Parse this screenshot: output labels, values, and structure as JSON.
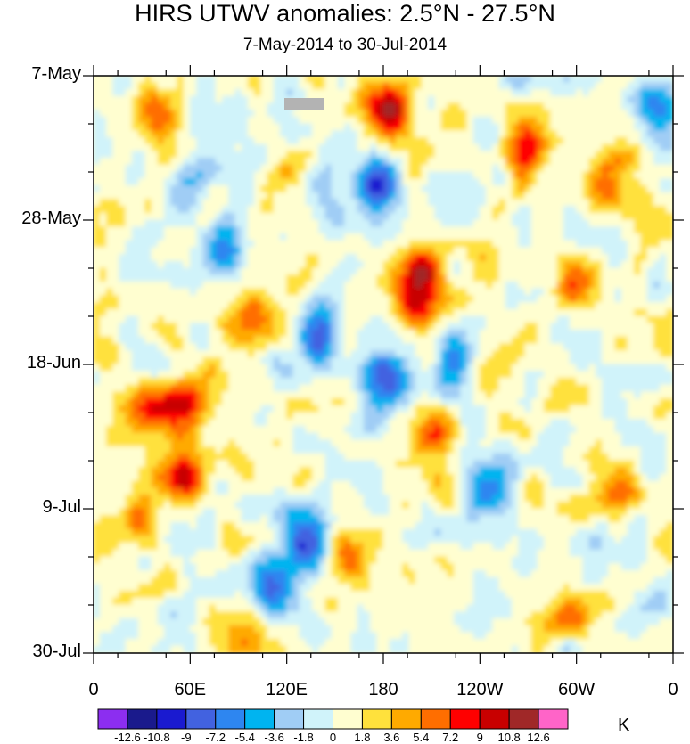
{
  "chart_data": {
    "type": "heatmap",
    "title": "HIRS UTWV anomalies: 2.5°N - 27.5°N",
    "subtitle": "7-May-2014 to 30-Jul-2014",
    "x_tick_labels": [
      "0",
      "60E",
      "120E",
      "180",
      "120W",
      "60W",
      "0"
    ],
    "x_range_deg": [
      0,
      360
    ],
    "y_tick_labels": [
      "7-May",
      "28-May",
      "18-Jun",
      "9-Jul",
      "30-Jul"
    ],
    "y_range_days": [
      0,
      84
    ],
    "colorbar_unit": "K",
    "colorbar_labels": [
      "-12.6",
      "-10.8",
      "-9",
      "-7.2",
      "-5.4",
      "-3.6",
      "-1.8",
      "0",
      "1.8",
      "3.6",
      "5.4",
      "7.2",
      "9",
      "10.8",
      "12.6"
    ],
    "colorbar_colors": [
      "#8c2ef0",
      "#1a1a8c",
      "#1a1ad0",
      "#4262e0",
      "#2e86f0",
      "#00b4f0",
      "#a0cdf5",
      "#d0f3fa",
      "#fffed0",
      "#ffe13c",
      "#ffaa00",
      "#ff6e00",
      "#ff0000",
      "#c80000",
      "#a02828",
      "#ff64c8"
    ],
    "hotspots": [
      {
        "lon": 183,
        "day": 5,
        "value": 11
      },
      {
        "lon": 178,
        "day": 16,
        "value": -10
      },
      {
        "lon": 205,
        "day": 28,
        "value": 9
      },
      {
        "lon": 200,
        "day": 34,
        "value": 7
      },
      {
        "lon": 56,
        "day": 48,
        "value": 10
      },
      {
        "lon": 30,
        "day": 49,
        "value": 8
      },
      {
        "lon": 55,
        "day": 58,
        "value": 9
      },
      {
        "lon": 140,
        "day": 38,
        "value": -8
      },
      {
        "lon": 180,
        "day": 44,
        "value": -9
      },
      {
        "lon": 225,
        "day": 42,
        "value": -8
      },
      {
        "lon": 210,
        "day": 52,
        "value": 6
      },
      {
        "lon": 270,
        "day": 10,
        "value": 8
      },
      {
        "lon": 320,
        "day": 15,
        "value": 7
      },
      {
        "lon": 300,
        "day": 30,
        "value": 7
      },
      {
        "lon": 40,
        "day": 5,
        "value": 6
      },
      {
        "lon": 100,
        "day": 35,
        "value": 6
      },
      {
        "lon": 110,
        "day": 75,
        "value": -9
      },
      {
        "lon": 130,
        "day": 68,
        "value": -8
      },
      {
        "lon": 160,
        "day": 70,
        "value": 6
      },
      {
        "lon": 250,
        "day": 60,
        "value": -6
      },
      {
        "lon": 330,
        "day": 60,
        "value": 7
      },
      {
        "lon": 30,
        "day": 65,
        "value": 5
      },
      {
        "lon": 300,
        "day": 78,
        "value": 6
      },
      {
        "lon": 80,
        "day": 25,
        "value": -6
      },
      {
        "lon": 240,
        "day": 45,
        "value": 5
      },
      {
        "lon": 90,
        "day": 80,
        "value": 6
      },
      {
        "lon": 350,
        "day": 5,
        "value": -5
      },
      {
        "lon": 60,
        "day": 15,
        "value": -5
      }
    ]
  }
}
